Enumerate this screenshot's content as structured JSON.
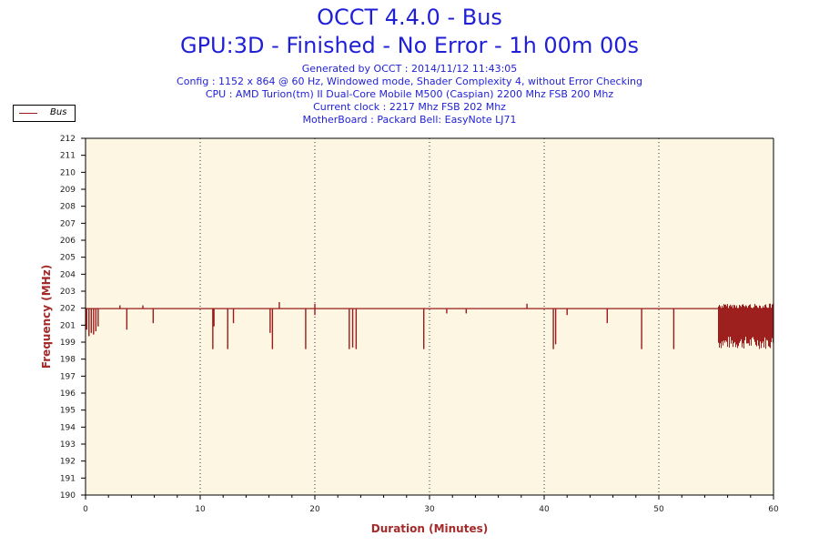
{
  "chart_data": {
    "type": "line",
    "title": "OCCT 4.4.0 - Bus",
    "subtitle": "GPU:3D - Finished - No Error - 1h 00m 00s",
    "info_lines": [
      "Generated by OCCT : 2014/11/12 11:43:05",
      "Config : 1152 x 864 @ 60 Hz, Windowed mode, Shader Complexity 4, without Error Checking",
      "CPU : AMD Turion(tm) II Dual-Core Mobile M500 (Caspian) 2200 Mhz FSB 200 Mhz",
      "Current clock : 2217 Mhz FSB 202 Mhz",
      "MotherBoard : Packard Bell: EasyNote LJ71"
    ],
    "xlabel": "Duration (Minutes)",
    "ylabel": "Frequency (MHz)",
    "xlim": [
      0,
      60
    ],
    "ylim": [
      190,
      212
    ],
    "x_ticks": [
      "0",
      "10",
      "20",
      "30",
      "40",
      "50",
      "60"
    ],
    "y_ticks": [
      "190",
      "191",
      "192",
      "193",
      "194",
      "195",
      "196",
      "197",
      "198",
      "199",
      "201",
      "202",
      "203",
      "204",
      "205",
      "206",
      "207",
      "208",
      "209",
      "210",
      "211",
      "212"
    ],
    "grid": "vertical dotted",
    "legend_position": "top-left",
    "colors": {
      "line": "#9b1b1b",
      "plot_bg": "#fdf6e3",
      "title": "#1f1fd6",
      "axis_title": "#a52a2a"
    },
    "series": [
      {
        "name": "Bus",
        "baseline": 201.5,
        "dips": [
          {
            "x": 0.1,
            "y": 200.2
          },
          {
            "x": 0.3,
            "y": 199.8
          },
          {
            "x": 0.5,
            "y": 200.0
          },
          {
            "x": 0.7,
            "y": 199.9
          },
          {
            "x": 0.9,
            "y": 200.1
          },
          {
            "x": 1.1,
            "y": 200.4
          },
          {
            "x": 3.6,
            "y": 200.2
          },
          {
            "x": 5.9,
            "y": 200.6
          },
          {
            "x": 11.1,
            "y": 199.0
          },
          {
            "x": 11.2,
            "y": 200.4
          },
          {
            "x": 12.4,
            "y": 199.0
          },
          {
            "x": 12.9,
            "y": 200.6
          },
          {
            "x": 16.1,
            "y": 200.0
          },
          {
            "x": 16.3,
            "y": 199.0
          },
          {
            "x": 19.2,
            "y": 199.0
          },
          {
            "x": 20.0,
            "y": 201.1
          },
          {
            "x": 23.0,
            "y": 199.0
          },
          {
            "x": 23.3,
            "y": 199.1
          },
          {
            "x": 23.6,
            "y": 199.0
          },
          {
            "x": 29.5,
            "y": 199.0
          },
          {
            "x": 31.5,
            "y": 201.2
          },
          {
            "x": 33.2,
            "y": 201.2
          },
          {
            "x": 40.8,
            "y": 199.0
          },
          {
            "x": 41.0,
            "y": 199.3
          },
          {
            "x": 42.0,
            "y": 201.1
          },
          {
            "x": 45.5,
            "y": 200.6
          },
          {
            "x": 48.5,
            "y": 199.0
          },
          {
            "x": 51.3,
            "y": 199.0
          }
        ],
        "spikes": [
          {
            "x": 3.0,
            "y": 201.7
          },
          {
            "x": 5.0,
            "y": 201.7
          },
          {
            "x": 16.9,
            "y": 201.9
          },
          {
            "x": 20.0,
            "y": 201.8
          },
          {
            "x": 38.5,
            "y": 201.8
          },
          {
            "x": 59.7,
            "y": 201.8
          }
        ],
        "noisy_band": {
          "x_start": 55.2,
          "x_end": 60.0,
          "y_min": 199.0,
          "y_max": 201.8
        }
      }
    ]
  }
}
